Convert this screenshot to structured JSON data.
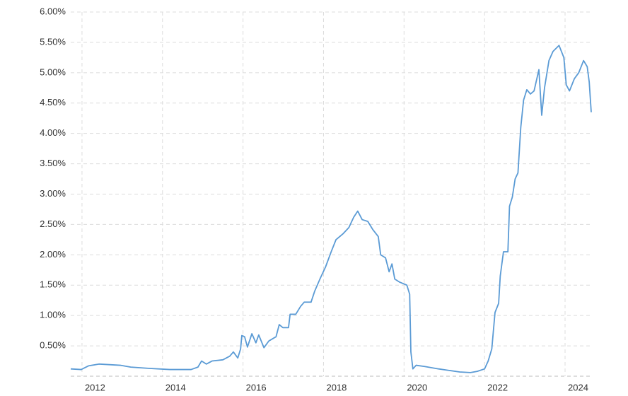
{
  "chart_data": {
    "type": "line",
    "x": [
      2011.72,
      2011.98,
      2012.16,
      2012.42,
      2012.95,
      2013.21,
      2013.65,
      2014.18,
      2014.71,
      2014.88,
      2014.97,
      2015.09,
      2015.23,
      2015.5,
      2015.67,
      2015.76,
      2015.87,
      2015.94,
      2015.97,
      2016.04,
      2016.11,
      2016.22,
      2016.32,
      2016.39,
      2016.52,
      2016.64,
      2016.82,
      2016.9,
      2016.99,
      2017.13,
      2017.17,
      2017.31,
      2017.43,
      2017.52,
      2017.69,
      2017.78,
      2017.91,
      2018.05,
      2018.19,
      2018.31,
      2018.49,
      2018.63,
      2018.75,
      2018.85,
      2018.96,
      2019.1,
      2019.22,
      2019.36,
      2019.42,
      2019.54,
      2019.63,
      2019.7,
      2019.77,
      2019.89,
      2020.07,
      2020.14,
      2020.17,
      2020.22,
      2020.3,
      2020.51,
      2020.86,
      2021.38,
      2021.65,
      2021.82,
      2022.0,
      2022.09,
      2022.18,
      2022.26,
      2022.35,
      2022.39,
      2022.47,
      2022.58,
      2022.62,
      2022.69,
      2022.76,
      2022.83,
      2022.9,
      2022.97,
      2023.05,
      2023.14,
      2023.23,
      2023.35,
      2023.42,
      2023.49,
      2023.6,
      2023.7,
      2023.85,
      2023.97,
      2024.03,
      2024.11,
      2024.23,
      2024.34,
      2024.46,
      2024.55,
      2024.6,
      2024.65
    ],
    "series": [
      {
        "color": "#5b9bd5",
        "values": [
          0.12,
          0.11,
          0.17,
          0.2,
          0.18,
          0.15,
          0.13,
          0.11,
          0.11,
          0.15,
          0.25,
          0.2,
          0.25,
          0.27,
          0.33,
          0.4,
          0.3,
          0.45,
          0.67,
          0.65,
          0.48,
          0.7,
          0.55,
          0.68,
          0.47,
          0.58,
          0.65,
          0.85,
          0.8,
          0.8,
          1.02,
          1.02,
          1.15,
          1.22,
          1.22,
          1.4,
          1.6,
          1.8,
          2.05,
          2.25,
          2.35,
          2.45,
          2.62,
          2.72,
          2.58,
          2.55,
          2.42,
          2.3,
          2.0,
          1.95,
          1.72,
          1.85,
          1.6,
          1.55,
          1.5,
          1.35,
          0.4,
          0.12,
          0.18,
          0.16,
          0.12,
          0.07,
          0.06,
          0.08,
          0.12,
          0.25,
          0.45,
          1.05,
          1.2,
          1.65,
          2.05,
          2.05,
          2.8,
          2.95,
          3.25,
          3.35,
          4.1,
          4.55,
          4.72,
          4.65,
          4.7,
          5.05,
          4.3,
          4.75,
          5.2,
          5.35,
          5.45,
          5.25,
          4.8,
          4.7,
          4.9,
          5.0,
          5.2,
          5.1,
          4.85,
          4.35
        ]
      }
    ],
    "xlim": [
      2011.72,
      2024.65
    ],
    "xticks": [
      2012,
      2014,
      2016,
      2018,
      2020,
      2022,
      2024
    ],
    "ylim": [
      0,
      6
    ],
    "yticks": [
      {
        "value": 0.5,
        "label": "0.50%"
      },
      {
        "value": 1,
        "label": "1.00%"
      },
      {
        "value": 1.5,
        "label": "1.50%"
      },
      {
        "value": 2,
        "label": "2.00%"
      },
      {
        "value": 2.5,
        "label": "2.50%"
      },
      {
        "value": 3,
        "label": "3.00%"
      },
      {
        "value": 3.5,
        "label": "3.50%"
      },
      {
        "value": 4,
        "label": "4.00%"
      },
      {
        "value": 4.5,
        "label": "4.50%"
      },
      {
        "value": 5,
        "label": "5.00%"
      },
      {
        "value": 5.5,
        "label": "5.50%"
      },
      {
        "value": 6,
        "label": "6.00%"
      }
    ],
    "grid": true
  }
}
